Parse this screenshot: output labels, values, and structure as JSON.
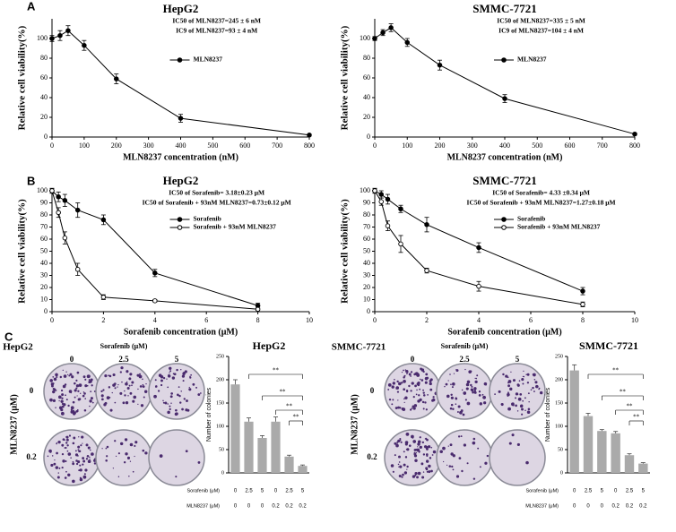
{
  "panel_labels": [
    "A",
    "B",
    "C"
  ],
  "colony_images": [
    {
      "title": "HepG2",
      "column_title": "Sorafenib (μM)",
      "columns": [
        "0",
        "2.5",
        "5"
      ],
      "row_title": "MLN8237 (μM)",
      "rows": [
        "0",
        "0.2"
      ]
    },
    {
      "title": "SMMC-7721",
      "column_title": "Sorafenib (μM)",
      "columns": [
        "0",
        "2.5",
        "5"
      ],
      "row_title": "MLN8237 (μM)",
      "rows": [
        "0",
        "0.2"
      ]
    }
  ],
  "chart_data": [
    {
      "type": "line",
      "title": "HepG2",
      "x_label": "MLN8237  concentration  (nM)",
      "y_label": "Relative cell viability(%)",
      "annotations": [
        "IC50 of MLN8237=245 ± 6 nM",
        "IC9 of MLN8237=93 ± 4 nM"
      ],
      "x": [
        0,
        25,
        50,
        100,
        200,
        400,
        800
      ],
      "xlim": [
        0,
        800
      ],
      "xticks": [
        0,
        100,
        200,
        300,
        400,
        500,
        600,
        700,
        800
      ],
      "ylim": [
        0,
        120
      ],
      "yticks": [
        0,
        20,
        40,
        60,
        80,
        100
      ],
      "series": [
        {
          "name": "MLN8237",
          "color": "#000000",
          "marker": "filled",
          "values": [
            100,
            103,
            108,
            93,
            59,
            19,
            2
          ],
          "errors": [
            3,
            5,
            5,
            5,
            5,
            4,
            1
          ]
        }
      ]
    },
    {
      "type": "line",
      "title": "SMMC-7721",
      "x_label": "MLN8237  concentration  (nM)",
      "y_label": "Relative cell viability(%)",
      "annotations": [
        "IC50 of MLN8237=335 ± 5 nM",
        "IC9 of MLN8237=104 ± 4 nM"
      ],
      "x": [
        0,
        25,
        50,
        100,
        200,
        400,
        800
      ],
      "xlim": [
        0,
        800
      ],
      "xticks": [
        0,
        100,
        200,
        300,
        400,
        500,
        600,
        700,
        800
      ],
      "ylim": [
        0,
        120
      ],
      "yticks": [
        0,
        20,
        40,
        60,
        80,
        100
      ],
      "series": [
        {
          "name": "MLN8237",
          "color": "#000000",
          "marker": "filled",
          "values": [
            100,
            106,
            111,
            96,
            73,
            39,
            3
          ],
          "errors": [
            2,
            3,
            4,
            4,
            5,
            4,
            1
          ]
        }
      ]
    },
    {
      "type": "line",
      "title": "HepG2",
      "x_label": "Sorafenib concentration  (μM)",
      "y_label": "Relative cell viability(%)",
      "annotations": [
        "IC50 of Sorafenib= 3.18±0.23 μM",
        "IC50 of  Sorafenib + 93nM MLN8237=0.73±0.12 μM"
      ],
      "x": [
        0,
        0.25,
        0.5,
        1,
        2,
        4,
        8
      ],
      "xlim": [
        0,
        10
      ],
      "xticks": [
        0,
        2,
        4,
        6,
        8,
        10
      ],
      "ylim": [
        0,
        100
      ],
      "yticks": [
        0,
        10,
        20,
        30,
        40,
        50,
        60,
        70,
        80,
        90,
        100
      ],
      "series": [
        {
          "name": "Sorafenib",
          "color": "#000000",
          "marker": "filled",
          "values": [
            100,
            95,
            92,
            84,
            76,
            32,
            5
          ],
          "errors": [
            2,
            4,
            5,
            6,
            4,
            3,
            2
          ]
        },
        {
          "name": "Sorafenib + 93nM MLN8237",
          "color": "#000000",
          "marker": "open",
          "values": [
            100,
            82,
            61,
            35,
            12,
            9,
            2
          ],
          "errors": [
            2,
            4,
            5,
            5,
            2,
            1,
            1
          ]
        }
      ]
    },
    {
      "type": "line",
      "title": "SMMC-7721",
      "x_label": "Sorafenib concentration  (μM)",
      "y_label": "Relative cell viability(%)",
      "annotations": [
        "IC50 of Sorafenib= 4.33 ±0.34 μM",
        "IC50 of  Sorafenib + 93nM MLN8237=1.27±0.18 μM"
      ],
      "x": [
        0,
        0.25,
        0.5,
        1,
        2,
        4,
        8
      ],
      "xlim": [
        0,
        10
      ],
      "xticks": [
        0,
        2,
        4,
        6,
        8,
        10
      ],
      "ylim": [
        0,
        100
      ],
      "yticks": [
        0,
        10,
        20,
        30,
        40,
        50,
        60,
        70,
        80,
        90,
        100
      ],
      "series": [
        {
          "name": "Sorafenib",
          "color": "#000000",
          "marker": "filled",
          "values": [
            100,
            97,
            93,
            85,
            72,
            53,
            17
          ],
          "errors": [
            2,
            3,
            4,
            3,
            6,
            4,
            3
          ]
        },
        {
          "name": "Sorafenib + 93nM MLN8237",
          "color": "#000000",
          "marker": "open",
          "values": [
            100,
            91,
            71,
            56,
            34,
            21,
            6
          ],
          "errors": [
            2,
            3,
            4,
            7,
            2,
            4,
            2
          ]
        }
      ]
    },
    {
      "type": "bar",
      "title": "HepG2",
      "y_label": "Number of colonies",
      "color": "#aaaaaa",
      "category_rows": [
        {
          "name": "Sorafenib (μM)",
          "labels": [
            "0",
            "2.5",
            "5",
            "0",
            "2.5",
            "5"
          ]
        },
        {
          "name": "MLN8237 (μM)",
          "labels": [
            "0",
            "0",
            "0",
            "0.2",
            "0.2",
            "0.2"
          ]
        }
      ],
      "values": [
        190,
        110,
        75,
        110,
        35,
        15
      ],
      "errors": [
        10,
        8,
        5,
        10,
        3,
        2
      ],
      "ylim": [
        0,
        250
      ],
      "yticks": [
        0,
        50,
        100,
        150,
        200,
        250
      ],
      "significance_labels": [
        "**",
        "**",
        "**",
        "**"
      ]
    },
    {
      "type": "bar",
      "title": "SMMC-7721",
      "y_label": "Number of colonies",
      "color": "#aaaaaa",
      "category_rows": [
        {
          "name": "Sorafenib (μM)",
          "labels": [
            "0",
            "2.5",
            "5",
            "0",
            "2.5",
            "5"
          ]
        },
        {
          "name": "MLN8237 (μM)",
          "labels": [
            "0",
            "0",
            "0",
            "0.2",
            "0.2",
            "0.2"
          ]
        }
      ],
      "values": [
        220,
        122,
        90,
        85,
        38,
        20
      ],
      "errors": [
        12,
        6,
        3,
        4,
        3,
        2
      ],
      "ylim": [
        0,
        250
      ],
      "yticks": [
        0,
        50,
        100,
        150,
        200,
        250
      ],
      "significance_labels": [
        "**",
        "**",
        "**",
        "**"
      ]
    }
  ]
}
